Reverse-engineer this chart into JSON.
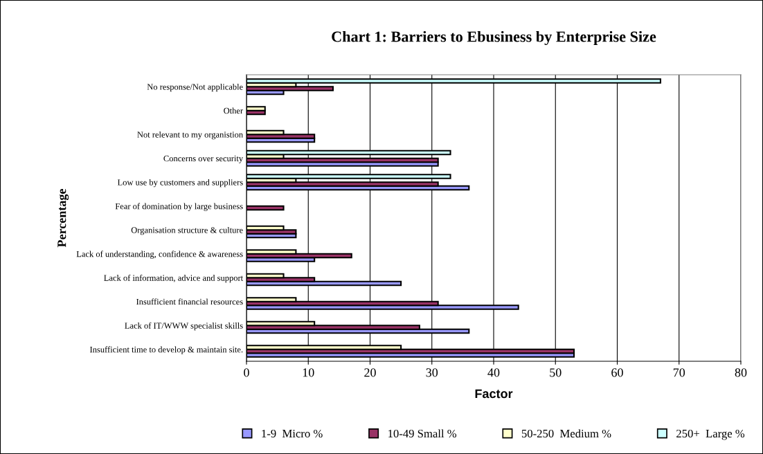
{
  "chart_data": {
    "type": "bar",
    "orientation": "horizontal",
    "title": "Chart 1: Barriers to Ebusiness by Enterprise Size",
    "xlabel": "Factor",
    "ylabel": "Percentage",
    "categories": [
      "No response/Not applicable",
      "Other",
      "Not relevant to my organistion",
      "Concerns over security",
      "Low use by customers and suppliers",
      "Fear of domination by large business",
      "Organisation structure & culture",
      "Lack of understanding, confidence & awareness",
      "Lack of information, advice and support",
      "Insufficient financial resources",
      "Lack of IT/WWW specialist skills",
      "Insufficient time to develop & maintain site."
    ],
    "series": [
      {
        "name": "1-9  Micro %",
        "color": "#9999ff",
        "values": [
          6,
          null,
          11,
          31,
          36,
          null,
          8,
          11,
          25,
          44,
          36,
          53
        ]
      },
      {
        "name": "10-49 Small %",
        "color": "#993366",
        "values": [
          14,
          3,
          11,
          31,
          31,
          6,
          8,
          17,
          11,
          31,
          28,
          53
        ]
      },
      {
        "name": "50-250  Medium %",
        "color": "#ffffcc",
        "values": [
          8,
          3,
          6,
          6,
          8,
          null,
          6,
          8,
          6,
          8,
          11,
          25
        ]
      },
      {
        "name": "250+  Large %",
        "color": "#ccffff",
        "values": [
          67,
          null,
          null,
          33,
          33,
          null,
          null,
          null,
          null,
          null,
          null,
          null
        ]
      }
    ],
    "xlim": [
      0,
      80
    ],
    "xticks": [
      0,
      10,
      20,
      30,
      40,
      50,
      60,
      70,
      80
    ],
    "grid": "x",
    "legend": "bottom"
  }
}
